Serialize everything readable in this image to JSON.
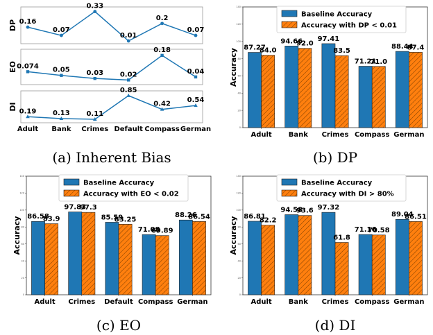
{
  "chart_data": [
    {
      "type": "line",
      "panel": "a",
      "caption": "(a) Inherent Bias",
      "categories": [
        "Adult",
        "Bank",
        "Crimes",
        "Default",
        "Compass",
        "German"
      ],
      "subplots": [
        {
          "ylabel": "DP",
          "values": [
            0.16,
            0.07,
            0.33,
            0.01,
            0.2,
            0.07
          ],
          "labels": [
            "0.16",
            "0.07",
            "0.33",
            "0.01",
            "0.2",
            "0.07"
          ],
          "ylim": [
            -0.02,
            0.38
          ],
          "marker": "circle"
        },
        {
          "ylabel": "EO",
          "values": [
            0.074,
            0.05,
            0.03,
            0.02,
            0.18,
            0.04
          ],
          "labels": [
            "0.074",
            "0.05",
            "0.03",
            "0.02",
            "0.18",
            "0.04"
          ],
          "ylim": [
            -0.01,
            0.22
          ],
          "marker": "square"
        },
        {
          "ylabel": "DI",
          "values": [
            0.19,
            0.13,
            0.11,
            0.85,
            0.42,
            0.54
          ],
          "labels": [
            "0.19",
            "0.13",
            "0.11",
            "0.85",
            "0.42",
            "0.54"
          ],
          "ylim": [
            0.0,
            1.0
          ],
          "marker": "triangle"
        }
      ],
      "color": "#1f77b4"
    },
    {
      "type": "bar",
      "panel": "b",
      "caption": "(b) DP",
      "ylabel": "Accuracy",
      "ylim": [
        0,
        140
      ],
      "yticks": [
        0,
        20,
        40,
        60,
        80,
        100,
        120,
        140
      ],
      "legend_position": "top-center",
      "categories": [
        "Adult",
        "Bank",
        "Crimes",
        "Compass",
        "German"
      ],
      "series": [
        {
          "name": "Baseline Accuracy",
          "values": [
            87.27,
            94.66,
            97.41,
            71.21,
            88.44
          ],
          "labels": [
            "87.27",
            "94.66",
            "97.41",
            "71.21",
            "88.44"
          ],
          "color": "#1f77b4",
          "hatch": false
        },
        {
          "name": "Accuracy with DP < 0.01",
          "values": [
            84.0,
            92.0,
            83.5,
            71.0,
            87.4
          ],
          "labels": [
            "84.0",
            "92.0",
            "83.5",
            "71.0",
            "87.4"
          ],
          "color": "#ff7f0e",
          "hatch": true
        }
      ]
    },
    {
      "type": "bar",
      "panel": "c",
      "caption": "(c) EO",
      "ylabel": "Accuracy",
      "ylim": [
        0,
        140
      ],
      "yticks": [
        0,
        20,
        40,
        60,
        80,
        100,
        120,
        140
      ],
      "legend_position": "top-center",
      "categories": [
        "Adult",
        "Crimes",
        "Default",
        "Compass",
        "German"
      ],
      "series": [
        {
          "name": "Baseline Accuracy",
          "values": [
            86.58,
            97.83,
            85.59,
            71.08,
            88.26
          ],
          "labels": [
            "86.58",
            "97.83",
            "85.59",
            "71.08",
            "88.26"
          ],
          "color": "#1f77b4",
          "hatch": false
        },
        {
          "name": "Accuracy with EO < 0.02",
          "values": [
            83.9,
            97.3,
            83.25,
            69.89,
            86.54
          ],
          "labels": [
            "83.9",
            "97.3",
            "83.25",
            "69.89",
            "86.54"
          ],
          "color": "#ff7f0e",
          "hatch": true
        }
      ]
    },
    {
      "type": "bar",
      "panel": "d",
      "caption": "(d) DI",
      "ylabel": "Accuracy",
      "ylim": [
        0,
        140
      ],
      "yticks": [
        0,
        20,
        40,
        60,
        80,
        100,
        120,
        140
      ],
      "legend_position": "top-center",
      "categories": [
        "Adult",
        "Bank",
        "Crimes",
        "Compass",
        "German"
      ],
      "series": [
        {
          "name": "Baseline Accuracy",
          "values": [
            86.81,
            94.58,
            97.32,
            71.16,
            89.04
          ],
          "labels": [
            "86.81",
            "94.58",
            "97.32",
            "71.16",
            "89.04"
          ],
          "color": "#1f77b4",
          "hatch": false
        },
        {
          "name": "Accuracy with DI > 80%",
          "values": [
            82.2,
            93.6,
            61.8,
            70.58,
            86.51
          ],
          "labels": [
            "82.2",
            "93.6",
            "61.8",
            "70.58",
            "86.51"
          ],
          "color": "#ff7f0e",
          "hatch": true
        }
      ]
    }
  ]
}
